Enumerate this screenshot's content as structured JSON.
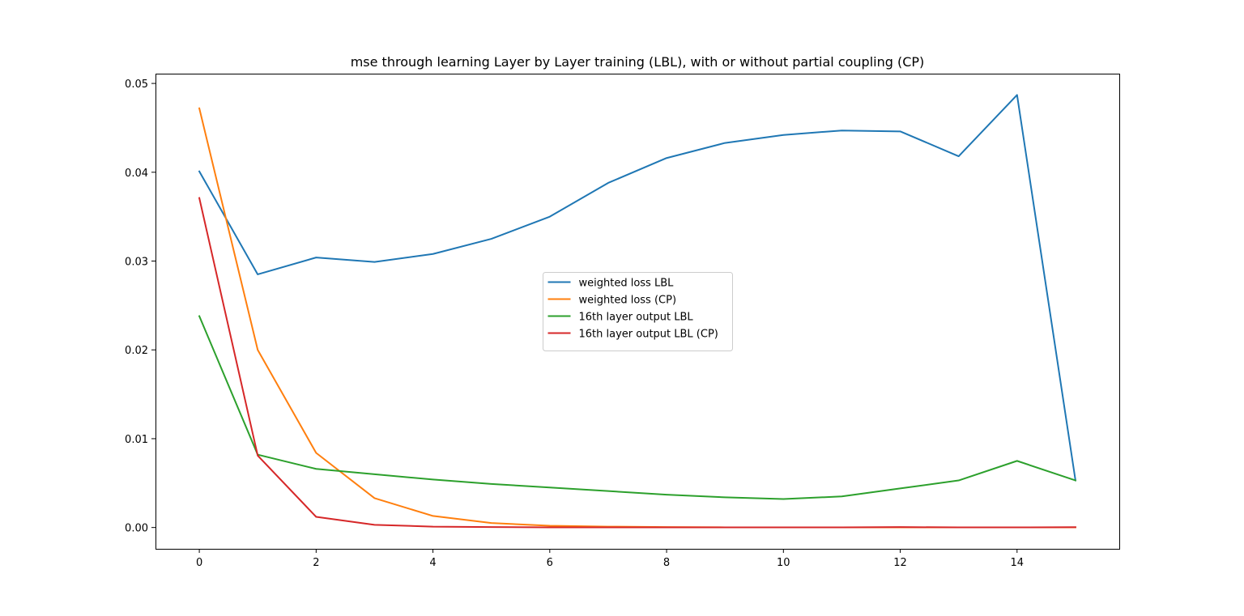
{
  "chart_data": {
    "type": "line",
    "title": "mse through learning Layer by Layer training (LBL), with or without partial coupling (CP)",
    "xlabel": "",
    "ylabel": "",
    "xlim": [
      -0.75,
      15.75
    ],
    "ylim": [
      -0.0024,
      0.0511
    ],
    "grid": false,
    "legend_position": "center",
    "x_ticks": [
      0,
      2,
      4,
      6,
      8,
      10,
      12,
      14
    ],
    "x_tick_labels": [
      "0",
      "2",
      "4",
      "6",
      "8",
      "10",
      "12",
      "14"
    ],
    "y_ticks": [
      0.0,
      0.01,
      0.02,
      0.03,
      0.04,
      0.05
    ],
    "y_tick_labels": [
      "0.00",
      "0.01",
      "0.02",
      "0.03",
      "0.04",
      "0.05"
    ],
    "x": [
      0,
      1,
      2,
      3,
      4,
      5,
      6,
      7,
      8,
      9,
      10,
      11,
      12,
      13,
      14,
      15
    ],
    "series": [
      {
        "name": "weighted loss LBL",
        "color": "#1f77b4",
        "values": [
          0.0401,
          0.0285,
          0.0304,
          0.0299,
          0.0308,
          0.0325,
          0.035,
          0.0388,
          0.0416,
          0.0433,
          0.0442,
          0.0447,
          0.0446,
          0.0418,
          0.0487,
          0.0053
        ]
      },
      {
        "name": "weighted loss (CP)",
        "color": "#ff7f0e",
        "values": [
          0.0472,
          0.02,
          0.0084,
          0.0033,
          0.0013,
          0.0005,
          0.0002,
          0.0001,
          5e-05,
          2e-05,
          1e-05,
          1e-05,
          1e-05,
          1e-05,
          1e-05,
          1e-05
        ]
      },
      {
        "name": "16th layer output LBL",
        "color": "#2ca02c",
        "values": [
          0.0238,
          0.0082,
          0.0066,
          0.006,
          0.0054,
          0.0049,
          0.0045,
          0.0041,
          0.0037,
          0.0034,
          0.0032,
          0.0035,
          0.0044,
          0.0053,
          0.0075,
          0.0053
        ]
      },
      {
        "name": "16th layer output LBL (CP)",
        "color": "#d62728",
        "values": [
          0.0371,
          0.0081,
          0.0012,
          0.0003,
          0.0001,
          5e-05,
          2e-05,
          1e-05,
          1e-05,
          1e-05,
          1e-05,
          1e-05,
          5e-05,
          1e-05,
          1e-05,
          4e-05
        ]
      }
    ]
  }
}
